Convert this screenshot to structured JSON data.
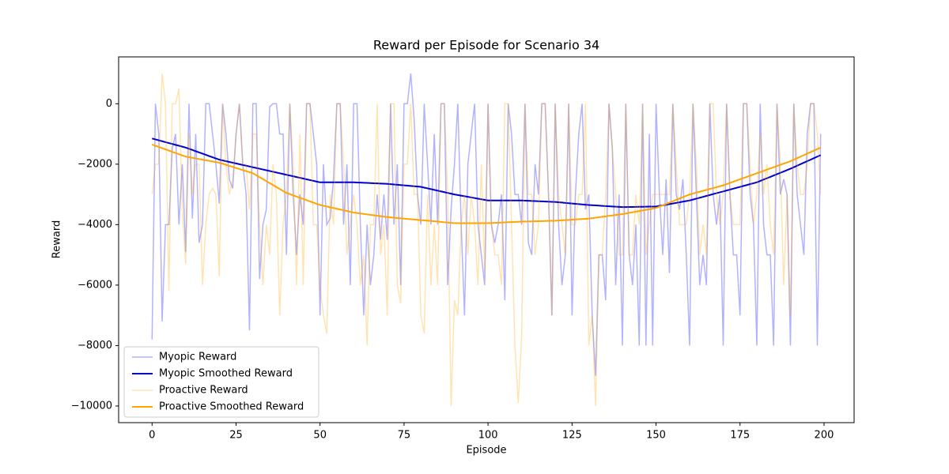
{
  "chart_data": {
    "type": "line",
    "title": "Reward per Episode for Scenario 34",
    "xlabel": "Episode",
    "ylabel": "Reward",
    "x": [
      0,
      1,
      2,
      3,
      4,
      5,
      6,
      7,
      8,
      9,
      10,
      11,
      12,
      13,
      14,
      15,
      16,
      17,
      18,
      19,
      20,
      21,
      22,
      23,
      24,
      25,
      26,
      27,
      28,
      29,
      30,
      31,
      32,
      33,
      34,
      35,
      36,
      37,
      38,
      39,
      40,
      41,
      42,
      43,
      44,
      45,
      46,
      47,
      48,
      49,
      50,
      51,
      52,
      53,
      54,
      55,
      56,
      57,
      58,
      59,
      60,
      61,
      62,
      63,
      64,
      65,
      66,
      67,
      68,
      69,
      70,
      71,
      72,
      73,
      74,
      75,
      76,
      77,
      78,
      79,
      80,
      81,
      82,
      83,
      84,
      85,
      86,
      87,
      88,
      89,
      90,
      91,
      92,
      93,
      94,
      95,
      96,
      97,
      98,
      99,
      100,
      101,
      102,
      103,
      104,
      105,
      106,
      107,
      108,
      109,
      110,
      111,
      112,
      113,
      114,
      115,
      116,
      117,
      118,
      119,
      120,
      121,
      122,
      123,
      124,
      125,
      126,
      127,
      128,
      129,
      130,
      131,
      132,
      133,
      134,
      135,
      136,
      137,
      138,
      139,
      140,
      141,
      142,
      143,
      144,
      145,
      146,
      147,
      148,
      149,
      150,
      151,
      152,
      153,
      154,
      155,
      156,
      157,
      158,
      159,
      160,
      161,
      162,
      163,
      164,
      165,
      166,
      167,
      168,
      169,
      170,
      171,
      172,
      173,
      174,
      175,
      176,
      177,
      178,
      179,
      180,
      181,
      182,
      183,
      184,
      185,
      186,
      187,
      188,
      189,
      190,
      191,
      192,
      193,
      194,
      195,
      196,
      197,
      198,
      199
    ],
    "series": [
      {
        "name": "Myopic Reward",
        "color": "#0000ff",
        "opacity": 0.3,
        "width": 1.5,
        "values": [
          -7800,
          0,
          -1000,
          -7200,
          -4000,
          -4000,
          -1500,
          -1000,
          -4000,
          -2000,
          -4900,
          0,
          -3800,
          -1000,
          -4600,
          -4000,
          0,
          0,
          -1000,
          -2000,
          -3300,
          0,
          -1000,
          -2500,
          -2800,
          -1000,
          0,
          -2000,
          -3000,
          -7500,
          0,
          0,
          -5800,
          -4000,
          -3500,
          -100,
          0,
          0,
          -1000,
          -1000,
          -5000,
          0,
          -3000,
          -5000,
          -3000,
          -4000,
          0,
          0,
          -1000,
          -2000,
          -7000,
          -2000,
          -4000,
          -3800,
          -2500,
          0,
          0,
          -4000,
          -2000,
          -6000,
          0,
          0,
          -4000,
          -7000,
          -4000,
          -6000,
          -5000,
          -3000,
          -4500,
          -3000,
          -4500,
          0,
          -4000,
          -2000,
          -6000,
          0,
          0,
          1000,
          -500,
          -3000,
          -4000,
          0,
          -2000,
          -4000,
          -1000,
          -4000,
          0,
          0,
          -6000,
          -3500,
          -2000,
          0,
          -4000,
          -7000,
          -2000,
          -1000,
          0,
          -4000,
          -5000,
          -6000,
          0,
          -4000,
          -4600,
          -4000,
          -3000,
          -6500,
          0,
          -1000,
          -3000,
          -3000,
          -4000,
          0,
          -4600,
          -5000,
          -2000,
          -3000,
          0,
          0,
          -3000,
          -7000,
          0,
          -4000,
          -6000,
          -5000,
          0,
          -7000,
          -3000,
          -1000,
          0,
          -3500,
          -3000,
          -7000,
          -9000,
          -5000,
          -5000,
          -6500,
          0,
          -1500,
          -6000,
          -3000,
          -8000,
          0,
          -5000,
          -6000,
          -4000,
          -8000,
          0,
          -8000,
          -1000,
          -8000,
          0,
          -3000,
          -5000,
          -2500,
          -5600,
          0,
          -3000,
          -3500,
          -2500,
          -5000,
          -8000,
          0,
          -3000,
          -6000,
          -5000,
          -6000,
          0,
          -3000,
          -4000,
          -3000,
          -8000,
          0,
          -3000,
          -5000,
          -5000,
          -7000,
          0,
          0,
          -3000,
          -4000,
          -8000,
          0,
          -4000,
          -5000,
          -5000,
          -8000,
          0,
          -3000,
          -2500,
          -3000,
          -8000,
          0,
          -3000,
          -4000,
          -5000,
          -1000,
          0,
          0,
          -8000,
          -1000
        ]
      },
      {
        "name": "Myopic Smoothed Reward",
        "color": "#0000cd",
        "opacity": 1,
        "width": 2,
        "values": [
          -1150,
          -1180,
          -1210,
          -1240,
          -1270,
          -1300,
          -1330,
          -1360,
          -1390,
          -1420,
          -1450,
          -1490,
          -1530,
          -1570,
          -1610,
          -1650,
          -1690,
          -1730,
          -1770,
          -1810,
          -1850,
          -1875,
          -1900,
          -1925,
          -1950,
          -1975,
          -2000,
          -2025,
          -2050,
          -2075,
          -2100,
          -2125,
          -2150,
          -2175,
          -2200,
          -2225,
          -2250,
          -2275,
          -2300,
          -2325,
          -2350,
          -2375,
          -2400,
          -2425,
          -2450,
          -2475,
          -2500,
          -2525,
          -2550,
          -2575,
          -2600,
          -2600,
          -2600,
          -2600,
          -2600,
          -2600,
          -2600,
          -2600,
          -2600,
          -2600,
          -2600,
          -2605,
          -2610,
          -2615,
          -2620,
          -2625,
          -2630,
          -2635,
          -2640,
          -2645,
          -2650,
          -2660,
          -2670,
          -2680,
          -2690,
          -2700,
          -2710,
          -2720,
          -2730,
          -2740,
          -2750,
          -2775,
          -2800,
          -2825,
          -2850,
          -2875,
          -2900,
          -2925,
          -2950,
          -2975,
          -3000,
          -3020,
          -3040,
          -3060,
          -3080,
          -3100,
          -3120,
          -3140,
          -3160,
          -3180,
          -3200,
          -3200,
          -3200,
          -3200,
          -3200,
          -3200,
          -3200,
          -3200,
          -3200,
          -3200,
          -3200,
          -3205,
          -3210,
          -3215,
          -3220,
          -3225,
          -3230,
          -3235,
          -3240,
          -3245,
          -3250,
          -3260,
          -3270,
          -3280,
          -3290,
          -3300,
          -3310,
          -3320,
          -3330,
          -3340,
          -3350,
          -3357,
          -3364,
          -3371,
          -3378,
          -3385,
          -3392,
          -3399,
          -3406,
          -3413,
          -3420,
          -3418,
          -3416,
          -3414,
          -3412,
          -3410,
          -3408,
          -3406,
          -3404,
          -3402,
          -3400,
          -3380,
          -3360,
          -3340,
          -3320,
          -3300,
          -3280,
          -3260,
          -3240,
          -3220,
          -3200,
          -3170,
          -3140,
          -3110,
          -3080,
          -3050,
          -3020,
          -2990,
          -2960,
          -2930,
          -2900,
          -2870,
          -2840,
          -2810,
          -2780,
          -2750,
          -2720,
          -2690,
          -2660,
          -2630,
          -2600,
          -2555,
          -2510,
          -2465,
          -2420,
          -2375,
          -2330,
          -2285,
          -2240,
          -2195,
          -2150,
          -2100,
          -2050,
          -2000,
          -1950,
          -1900,
          -1850,
          -1800,
          -1750,
          -1700
        ]
      },
      {
        "name": "Proactive Reward",
        "color": "#ffa500",
        "opacity": 0.3,
        "width": 1.5,
        "values": [
          -3000,
          -2000,
          -2000,
          1000,
          0,
          -6200,
          0,
          0,
          500,
          -3500,
          -5300,
          -1000,
          -3000,
          -2000,
          -2000,
          -6000,
          -4000,
          -3000,
          -2800,
          -3000,
          -5700,
          0,
          -2000,
          -3000,
          -2500,
          -1000,
          0,
          -2000,
          -2000,
          -3500,
          -1000,
          -1000,
          -4000,
          -6000,
          -4000,
          -5000,
          -2000,
          -3000,
          -7000,
          -4000,
          -3000,
          0,
          -2000,
          -6000,
          -1000,
          -6000,
          0,
          0,
          -4000,
          -4000,
          -6000,
          -7000,
          -7600,
          -3000,
          -4000,
          0,
          0,
          -2000,
          -5000,
          -4000,
          -3000,
          -4000,
          -6000,
          -5000,
          -8000,
          -4000,
          -4000,
          0,
          -5000,
          -4000,
          -7000,
          0,
          0,
          -6000,
          -6600,
          -2000,
          -2000,
          0,
          -3000,
          -3000,
          -7000,
          -7600,
          -3000,
          -6000,
          -4000,
          -6000,
          0,
          0,
          -3000,
          -10000,
          -6500,
          -7000,
          -4000,
          -3000,
          -5000,
          -3000,
          -4000,
          -6000,
          -2000,
          -5600,
          0,
          -4000,
          -5000,
          -5000,
          -6000,
          0,
          0,
          -4000,
          -8000,
          -9900,
          -7700,
          0,
          -3000,
          -3000,
          -5000,
          -4000,
          0,
          0,
          -3000,
          -7000,
          0,
          -3000,
          -4000,
          -5000,
          0,
          -4000,
          -4000,
          -3000,
          -3000,
          0,
          -8000,
          -7000,
          -10000,
          -5000,
          -5000,
          -3000,
          0,
          -1500,
          -3000,
          -5000,
          -5000,
          0,
          -5000,
          -5000,
          -3000,
          -4000,
          0,
          -5000,
          -4000,
          -3000,
          -3000,
          -3000,
          -3000,
          -3000,
          -3000,
          0,
          -2000,
          -4000,
          -4000,
          -4000,
          -3000,
          0,
          -2000,
          -5000,
          -4000,
          -5000,
          0,
          0,
          -3000,
          -4000,
          -3000,
          0,
          -3000,
          -4000,
          -4000,
          -4000,
          0,
          0,
          -2000,
          -4000,
          -3000,
          -1000,
          -3000,
          -2000,
          -4000,
          -5000,
          0,
          -2000,
          -6000,
          -3000,
          -7000,
          0,
          -2000,
          -3000,
          -3000,
          -2000,
          0,
          0,
          -1000,
          -3000
        ]
      },
      {
        "name": "Proactive Smoothed Reward",
        "color": "#ffa500",
        "opacity": 1,
        "width": 2,
        "values": [
          -1350,
          -1390,
          -1430,
          -1470,
          -1510,
          -1550,
          -1590,
          -1630,
          -1670,
          -1710,
          -1750,
          -1770,
          -1790,
          -1810,
          -1830,
          -1850,
          -1870,
          -1890,
          -1910,
          -1930,
          -1950,
          -1985,
          -2020,
          -2055,
          -2090,
          -2125,
          -2160,
          -2195,
          -2230,
          -2265,
          -2300,
          -2365,
          -2430,
          -2495,
          -2560,
          -2625,
          -2690,
          -2755,
          -2820,
          -2885,
          -2950,
          -2990,
          -3030,
          -3070,
          -3110,
          -3150,
          -3190,
          -3230,
          -3270,
          -3310,
          -3350,
          -3375,
          -3400,
          -3425,
          -3450,
          -3475,
          -3500,
          -3525,
          -3550,
          -3575,
          -3600,
          -3615,
          -3630,
          -3645,
          -3660,
          -3675,
          -3690,
          -3705,
          -3720,
          -3735,
          -3750,
          -3760,
          -3770,
          -3780,
          -3790,
          -3800,
          -3810,
          -3820,
          -3830,
          -3840,
          -3850,
          -3860,
          -3870,
          -3880,
          -3890,
          -3900,
          -3910,
          -3920,
          -3930,
          -3940,
          -3950,
          -3950,
          -3950,
          -3950,
          -3950,
          -3950,
          -3950,
          -3950,
          -3950,
          -3950,
          -3950,
          -3945,
          -3940,
          -3935,
          -3930,
          -3925,
          -3920,
          -3915,
          -3910,
          -3905,
          -3900,
          -3897,
          -3894,
          -3891,
          -3888,
          -3885,
          -3882,
          -3879,
          -3876,
          -3873,
          -3870,
          -3863,
          -3856,
          -3849,
          -3842,
          -3835,
          -3828,
          -3821,
          -3814,
          -3807,
          -3800,
          -3785,
          -3770,
          -3755,
          -3740,
          -3725,
          -3710,
          -3695,
          -3680,
          -3665,
          -3650,
          -3630,
          -3610,
          -3590,
          -3570,
          -3550,
          -3530,
          -3510,
          -3490,
          -3470,
          -3450,
          -3405,
          -3360,
          -3315,
          -3270,
          -3225,
          -3180,
          -3135,
          -3090,
          -3045,
          -3000,
          -2970,
          -2940,
          -2910,
          -2880,
          -2850,
          -2820,
          -2790,
          -2760,
          -2730,
          -2700,
          -2660,
          -2620,
          -2580,
          -2540,
          -2500,
          -2460,
          -2420,
          -2380,
          -2340,
          -2300,
          -2260,
          -2220,
          -2180,
          -2140,
          -2100,
          -2060,
          -2020,
          -1980,
          -1940,
          -1900,
          -1850,
          -1800,
          -1750,
          -1700,
          -1650,
          -1600,
          -1550,
          -1500,
          -1450
        ]
      }
    ],
    "xlim": [
      -9.95,
      208.95
    ],
    "ylim": [
      -10550,
      1550
    ],
    "xticks": [
      0,
      25,
      50,
      75,
      100,
      125,
      150,
      175,
      200
    ],
    "yticks": [
      {
        "value": -10000,
        "label": "−10000"
      },
      {
        "value": -8000,
        "label": "−8000"
      },
      {
        "value": -6000,
        "label": "−6000"
      },
      {
        "value": -4000,
        "label": "−4000"
      },
      {
        "value": -2000,
        "label": "−2000"
      },
      0
    ],
    "legend": "lower left"
  }
}
